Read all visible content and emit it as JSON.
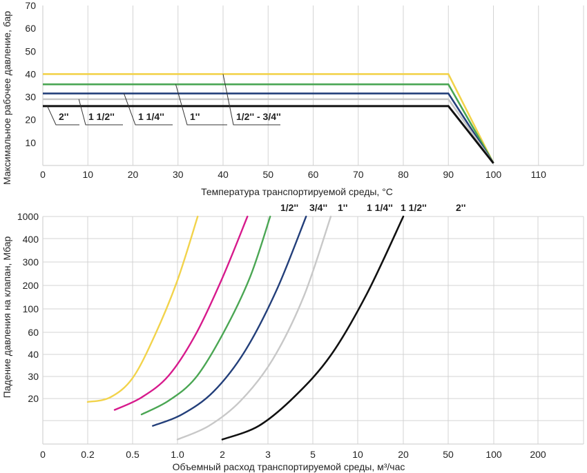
{
  "colors": {
    "yellow": "#f2d34b",
    "magenta": "#d71a8c",
    "green": "#4aa653",
    "navy": "#233f7a",
    "gray": "#c8c8c8",
    "black": "#111111",
    "grid": "#d3d3d3"
  },
  "chart_data": [
    {
      "type": "line",
      "title": "",
      "xlabel": "Температура транспортируемой среды, °С",
      "ylabel": "Максимальное рабочее давление, бар",
      "xlim": [
        0,
        120
      ],
      "ylim": [
        0,
        70
      ],
      "x_ticks": [
        "0",
        "10",
        "20",
        "30",
        "40",
        "50",
        "60",
        "70",
        "80",
        "90",
        "100",
        "110"
      ],
      "y_ticks": [
        "10",
        "20",
        "30",
        "40",
        "50",
        "60",
        "70"
      ],
      "series": [
        {
          "name": "1/2'' - 3/4''",
          "color": "yellow",
          "x": [
            0,
            90,
            100
          ],
          "y": [
            40,
            40,
            1
          ],
          "label_anchor": [
            40,
            40
          ]
        },
        {
          "name": "1''",
          "color": "green",
          "x": [
            0,
            90,
            100
          ],
          "y": [
            35.5,
            35.5,
            1
          ],
          "label_anchor": [
            29.5,
            35.5
          ]
        },
        {
          "name": "1 1/4''",
          "color": "navy",
          "x": [
            0,
            90,
            100
          ],
          "y": [
            31.5,
            31.5,
            1
          ],
          "label_anchor": [
            18,
            31.5
          ]
        },
        {
          "name": "1 1/2''",
          "color": "gray",
          "x": [
            0,
            90,
            100
          ],
          "y": [
            29,
            29,
            1
          ],
          "label_anchor": [
            8,
            29
          ]
        },
        {
          "name": "2''",
          "color": "black",
          "x": [
            0,
            90,
            100
          ],
          "y": [
            26,
            26,
            1
          ],
          "label_anchor": [
            1,
            26
          ]
        }
      ],
      "labels": [
        "2''",
        "1 1/2''",
        "1 1/4''",
        "1''",
        "1/2'' - 3/4''"
      ]
    },
    {
      "type": "line",
      "title": "",
      "xlabel": "Объемный расход транспортируемой среды, м³/час",
      "ylabel": "Падение давления на клапан, Мбар",
      "x_ticks": [
        "0",
        "0.2",
        "0.5",
        "1.0",
        "2",
        "3",
        "5",
        "10",
        "20",
        "50",
        "100",
        "200"
      ],
      "y_ticks": [
        "20",
        "30",
        "40",
        "60",
        "100",
        "200",
        "300",
        "400",
        "1000"
      ],
      "note": "Both axes use non-uniform categorical tick positions; values given in tick-index units (x: 0=0 ... 11=200, y: 0=20 ... 8=1000, -1 = first gridline below 20).",
      "x_index_range": [
        0,
        12
      ],
      "y_index_range": [
        -2,
        8
      ],
      "series": [
        {
          "name": "1/2''",
          "color": "yellow",
          "x": [
            1,
            1.5,
            2,
            2.5,
            3,
            3.45
          ],
          "y": [
            -0.15,
            0.05,
            0.9,
            2.8,
            5.2,
            8
          ]
        },
        {
          "name": "3/4''",
          "color": "magenta",
          "x": [
            1.6,
            2.2,
            2.8,
            3.4,
            4,
            4.55
          ],
          "y": [
            -0.5,
            0.05,
            1,
            2.8,
            5.3,
            8
          ]
        },
        {
          "name": "1''",
          "color": "green",
          "x": [
            2.2,
            2.8,
            3.4,
            4,
            4.6,
            5.05
          ],
          "y": [
            -0.7,
            -0.1,
            0.9,
            2.8,
            5.3,
            8
          ]
        },
        {
          "name": "1 1/4''",
          "color": "navy",
          "x": [
            2.45,
            3.1,
            3.8,
            4.5,
            5.2,
            5.85
          ],
          "y": [
            -1.2,
            -0.7,
            0.3,
            2.1,
            4.8,
            8
          ]
        },
        {
          "name": "1 1/2''",
          "color": "gray",
          "x": [
            3,
            3.7,
            4.4,
            5.1,
            5.8,
            6.4
          ],
          "y": [
            -1.8,
            -1.2,
            -0.1,
            1.7,
            4.5,
            8
          ]
        },
        {
          "name": "2''",
          "color": "black",
          "x": [
            4,
            4.8,
            5.6,
            6.4,
            7.2,
            8
          ],
          "y": [
            -1.8,
            -1.2,
            0.1,
            1.9,
            4.6,
            8
          ]
        }
      ],
      "labels": [
        "1/2''",
        "3/4''",
        "1''",
        "1 1/4''",
        "1 1/2''",
        "2''"
      ]
    }
  ]
}
